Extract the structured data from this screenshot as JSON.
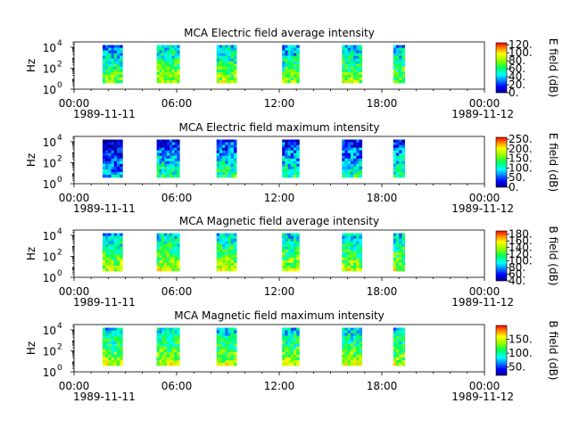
{
  "chart_data": [
    {
      "type": "heatmap",
      "title": "MCA  Electric field average intensity",
      "ylabel": "Hz",
      "colorbar_label": "E field (dB)",
      "colorbar_ticks": [
        "0.",
        "20.",
        "40.",
        "60.",
        "80.",
        "100.",
        "120."
      ],
      "colorbar_range": [
        0,
        125
      ],
      "y_ticks": [
        {
          "base": "10",
          "exp": "0"
        },
        {
          "base": "10",
          "exp": "2"
        },
        {
          "base": "10",
          "exp": "4"
        }
      ],
      "x_tick_labels": [
        "00:00",
        "06:00",
        "12:00",
        "18:00",
        "00:00"
      ],
      "x_date_labels": [
        "1989-11-11",
        "1989-11-12"
      ],
      "x_range": [
        "1989-11-11T00:00",
        "1989-11-12T00:00"
      ],
      "y_range_log10": [
        0,
        4.5
      ],
      "segments": [
        {
          "start": "01:40",
          "end": "02:50",
          "level": 55
        },
        {
          "start": "04:50",
          "end": "06:10",
          "level": 62
        },
        {
          "start": "08:20",
          "end": "09:30",
          "level": 60
        },
        {
          "start": "12:10",
          "end": "13:10",
          "level": 55
        },
        {
          "start": "15:40",
          "end": "16:50",
          "level": 58
        },
        {
          "start": "18:40",
          "end": "19:20",
          "level": 58
        }
      ]
    },
    {
      "type": "heatmap",
      "title": "MCA  Electric field maximum intensity",
      "ylabel": "Hz",
      "colorbar_label": "E field (dB)",
      "colorbar_ticks": [
        "0.",
        "50.",
        "100.",
        "150.",
        "200.",
        "250."
      ],
      "colorbar_range": [
        0,
        260
      ],
      "y_ticks": [
        {
          "base": "10",
          "exp": "0"
        },
        {
          "base": "10",
          "exp": "2"
        },
        {
          "base": "10",
          "exp": "4"
        }
      ],
      "x_tick_labels": [
        "00:00",
        "06:00",
        "12:00",
        "18:00",
        "00:00"
      ],
      "x_date_labels": [
        "1989-11-11",
        "1989-11-12"
      ],
      "x_range": [
        "1989-11-11T00:00",
        "1989-11-12T00:00"
      ],
      "y_range_log10": [
        0,
        4.5
      ],
      "segments": [
        {
          "start": "01:40",
          "end": "02:50",
          "level": 40
        },
        {
          "start": "04:50",
          "end": "06:10",
          "level": 80
        },
        {
          "start": "08:20",
          "end": "09:30",
          "level": 85
        },
        {
          "start": "12:10",
          "end": "13:10",
          "level": 80
        },
        {
          "start": "15:40",
          "end": "16:50",
          "level": 75
        },
        {
          "start": "18:40",
          "end": "19:20",
          "level": 80
        }
      ]
    },
    {
      "type": "heatmap",
      "title": "MCA  Magnetic field average intensity",
      "ylabel": "Hz",
      "colorbar_label": "B field (dB)",
      "colorbar_ticks": [
        "40.",
        "60.",
        "80.",
        "100.",
        "120.",
        "140.",
        "160.",
        "180."
      ],
      "colorbar_range": [
        40,
        190
      ],
      "y_ticks": [
        {
          "base": "10",
          "exp": "0"
        },
        {
          "base": "10",
          "exp": "2"
        },
        {
          "base": "10",
          "exp": "4"
        }
      ],
      "x_tick_labels": [
        "00:00",
        "06:00",
        "12:00",
        "18:00",
        "00:00"
      ],
      "x_date_labels": [
        "1989-11-11",
        "1989-11-12"
      ],
      "x_range": [
        "1989-11-11T00:00",
        "1989-11-12T00:00"
      ],
      "y_range_log10": [
        0,
        4.5
      ],
      "segments": [
        {
          "start": "01:40",
          "end": "02:50",
          "level": 115
        },
        {
          "start": "04:50",
          "end": "06:10",
          "level": 118
        },
        {
          "start": "08:20",
          "end": "09:30",
          "level": 118
        },
        {
          "start": "12:10",
          "end": "13:10",
          "level": 115
        },
        {
          "start": "15:40",
          "end": "16:50",
          "level": 115
        },
        {
          "start": "18:40",
          "end": "19:20",
          "level": 115
        }
      ]
    },
    {
      "type": "heatmap",
      "title": "MCA  Magnetic field maximum intensity",
      "ylabel": "Hz",
      "colorbar_label": "B field (dB)",
      "colorbar_ticks": [
        "50.",
        "100.",
        "150."
      ],
      "colorbar_range": [
        20,
        200
      ],
      "y_ticks": [
        {
          "base": "10",
          "exp": "0"
        },
        {
          "base": "10",
          "exp": "2"
        },
        {
          "base": "10",
          "exp": "4"
        }
      ],
      "x_tick_labels": [
        "00:00",
        "06:00",
        "12:00",
        "18:00",
        "00:00"
      ],
      "x_date_labels": [
        "1989-11-11",
        "1989-11-12"
      ],
      "x_range": [
        "1989-11-11T00:00",
        "1989-11-12T00:00"
      ],
      "y_range_log10": [
        0,
        4.5
      ],
      "segments": [
        {
          "start": "01:40",
          "end": "02:50",
          "level": 110
        },
        {
          "start": "04:50",
          "end": "06:10",
          "level": 115
        },
        {
          "start": "08:20",
          "end": "09:30",
          "level": 112
        },
        {
          "start": "12:10",
          "end": "13:10",
          "level": 112
        },
        {
          "start": "15:40",
          "end": "16:50",
          "level": 112
        },
        {
          "start": "18:40",
          "end": "19:20",
          "level": 112
        }
      ]
    }
  ]
}
